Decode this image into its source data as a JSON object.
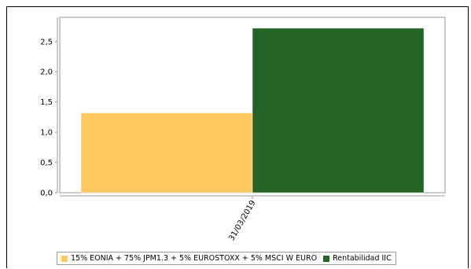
{
  "chart_data": {
    "type": "bar",
    "categories": [
      "31/03/2019"
    ],
    "series": [
      {
        "name": "15% EONIA + 75% JPM1.3 + 5% EUROSTOXX + 5% MSCI W EURO",
        "values": [
          1.32
        ],
        "color": "#ffc860"
      },
      {
        "name": "Rentabilidad IIC",
        "values": [
          2.72
        ],
        "color": "#246424"
      }
    ],
    "yticks": [
      "0,0",
      "0,5",
      "1,0",
      "1,5",
      "2,0",
      "2,5"
    ],
    "ylim": [
      0,
      2.9
    ],
    "grid": false,
    "legend_position": "bottom",
    "title": "",
    "xlabel": "",
    "ylabel": ""
  }
}
